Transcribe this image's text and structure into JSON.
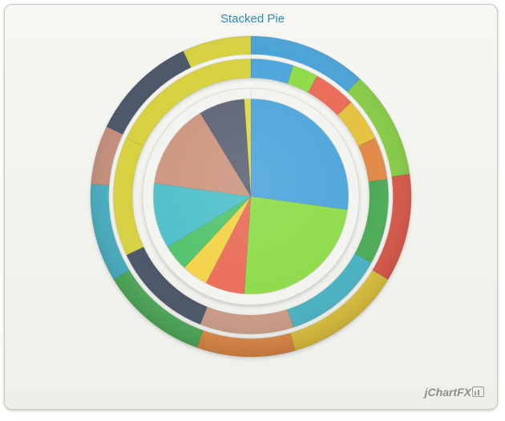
{
  "title": "Stacked Pie",
  "brand": "jChartFX",
  "chart_data": {
    "type": "pie",
    "title": "Stacked Pie",
    "rings": [
      {
        "name": "",
        "values": [
          25,
          22,
          6,
          4,
          4,
          10,
          13,
          7,
          1
        ],
        "colors": [
          "#4fa6dc",
          "#8fdc4c",
          "#ea6e5a",
          "#f3d34a",
          "#52c46c",
          "#4fc0c8",
          "#cc9680",
          "#5e6576",
          "#e2d84a"
        ]
      },
      {
        "name": "",
        "values": [
          5,
          3,
          5,
          5,
          5,
          10,
          12,
          11,
          12,
          14,
          18
        ],
        "colors": [
          "#4fa6dc",
          "#8fdc4c",
          "#ea6e5a",
          "#e5c241",
          "#e18a48",
          "#4eab58",
          "#4ab2c2",
          "#c99a84",
          "#4a5467",
          "#d7d140",
          "#d7d140"
        ]
      },
      {
        "name": "",
        "values": [
          12,
          11,
          11,
          12,
          10,
          11,
          10,
          6,
          11,
          7
        ],
        "colors": [
          "#4aa3d6",
          "#86cd44",
          "#d9584a",
          "#ddc23c",
          "#e08945",
          "#4eab58",
          "#47afc1",
          "#c58f7c",
          "#4a5467",
          "#d7d140"
        ]
      }
    ]
  }
}
